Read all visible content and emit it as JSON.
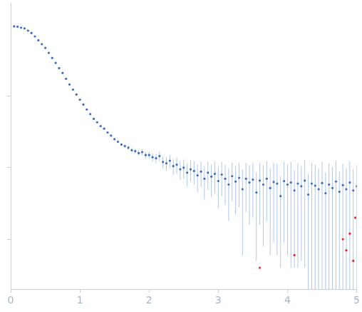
{
  "chart_data": {
    "type": "scatter",
    "series": [
      {
        "color": "#3d6bbf",
        "x": [
          0.05,
          0.1,
          0.15,
          0.2,
          0.25,
          0.3,
          0.35,
          0.4,
          0.45,
          0.5,
          0.55,
          0.6,
          0.65,
          0.7,
          0.75,
          0.8,
          0.85,
          0.9,
          0.95,
          1.0,
          1.05,
          1.1,
          1.15,
          1.2,
          1.25,
          1.3,
          1.35,
          1.4,
          1.45,
          1.5,
          1.55,
          1.6,
          1.65,
          1.7,
          1.75,
          1.8,
          1.85,
          1.9,
          1.95,
          2.0,
          2.05,
          2.1,
          2.15,
          2.2,
          2.25,
          2.3,
          2.35,
          2.4,
          2.45,
          2.5,
          2.55,
          2.6,
          2.65,
          2.7,
          2.75,
          2.8,
          2.85,
          2.9,
          2.95,
          3.0,
          3.05,
          3.1,
          3.15,
          3.2,
          3.25,
          3.3,
          3.35,
          3.4,
          3.45,
          3.5,
          3.55,
          3.6,
          3.65,
          3.7,
          3.75,
          3.8,
          3.85,
          3.9,
          3.95,
          4.0,
          4.05,
          4.1,
          4.15,
          4.2,
          4.25,
          4.3,
          4.35,
          4.4,
          4.45,
          4.5,
          4.55,
          4.6,
          4.65,
          4.7,
          4.75,
          4.8,
          4.85,
          4.9,
          4.95,
          5.0
        ],
        "values": [
          9.4,
          9.3,
          9.0,
          8.8,
          8.2,
          7.6,
          6.8,
          6.0,
          5.3,
          4.7,
          4.0,
          3.4,
          2.9,
          2.45,
          2.1,
          1.74,
          1.45,
          1.23,
          1.05,
          0.89,
          0.76,
          0.65,
          0.56,
          0.48,
          0.43,
          0.38,
          0.35,
          0.31,
          0.28,
          0.25,
          0.23,
          0.21,
          0.2,
          0.19,
          0.175,
          0.17,
          0.16,
          0.165,
          0.15,
          0.15,
          0.14,
          0.135,
          0.145,
          0.12,
          0.115,
          0.125,
          0.105,
          0.11,
          0.095,
          0.1,
          0.085,
          0.095,
          0.09,
          0.078,
          0.088,
          0.07,
          0.085,
          0.075,
          0.082,
          0.065,
          0.08,
          0.07,
          0.058,
          0.076,
          0.064,
          0.072,
          0.05,
          0.07,
          0.062,
          0.068,
          0.045,
          0.066,
          0.058,
          0.07,
          0.052,
          0.063,
          0.06,
          0.04,
          0.065,
          0.058,
          0.062,
          0.048,
          0.06,
          0.055,
          0.066,
          0.042,
          0.06,
          0.056,
          0.05,
          0.061,
          0.044,
          0.058,
          0.052,
          0.064,
          0.046,
          0.057,
          0.05,
          0.062,
          0.048,
          0.055
        ],
        "errors": [
          0.3,
          0.2,
          0.15,
          0.12,
          0.1,
          0.08,
          0.07,
          0.06,
          0.05,
          0.04,
          0.035,
          0.03,
          0.025,
          0.02,
          0.018,
          0.015,
          0.013,
          0.012,
          0.011,
          0.01,
          0.009,
          0.008,
          0.008,
          0.007,
          0.007,
          0.007,
          0.007,
          0.007,
          0.007,
          0.008,
          0.008,
          0.009,
          0.01,
          0.012,
          0.012,
          0.013,
          0.014,
          0.016,
          0.016,
          0.018,
          0.018,
          0.02,
          0.022,
          0.022,
          0.024,
          0.026,
          0.026,
          0.028,
          0.028,
          0.03,
          0.03,
          0.032,
          0.032,
          0.033,
          0.034,
          0.034,
          0.036,
          0.036,
          0.038,
          0.038,
          0.04,
          0.04,
          0.04,
          0.042,
          0.042,
          0.044,
          0.044,
          0.046,
          0.046,
          0.048,
          0.04,
          0.05,
          0.05,
          0.052,
          0.046,
          0.054,
          0.054,
          0.036,
          0.056,
          0.052,
          0.058,
          0.044,
          0.056,
          0.05,
          0.062,
          0.04,
          0.058,
          0.054,
          0.048,
          0.06,
          0.042,
          0.056,
          0.05,
          0.062,
          0.044,
          0.056,
          0.049,
          0.06,
          0.047,
          0.054
        ]
      },
      {
        "color": "#e8202a",
        "x": [
          3.6,
          4.1,
          4.8,
          4.85,
          4.9,
          4.95,
          4.98
        ],
        "values": [
          0.004,
          0.006,
          0.01,
          0.007,
          0.012,
          0.005,
          0.02
        ]
      }
    ],
    "xlim": [
      0,
      5
    ],
    "xticks": [
      0,
      1,
      2,
      3,
      4,
      5
    ],
    "ylim": [
      0.002,
      20
    ],
    "yticks": [
      0.01,
      0.1,
      1
    ],
    "log": "y",
    "grid": false,
    "tick_labels": "x",
    "marker": "circle"
  }
}
